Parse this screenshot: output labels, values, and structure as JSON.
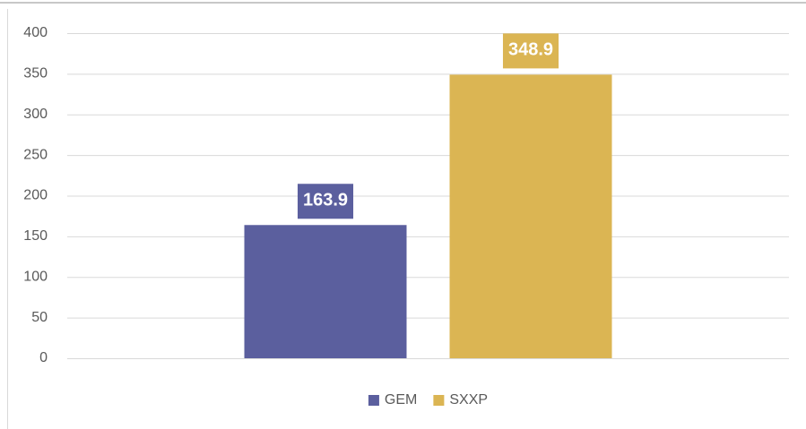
{
  "chart_data": {
    "type": "bar",
    "categories": [
      null
    ],
    "series": [
      {
        "name": "GEM",
        "color": "#5b5f9e",
        "values": [
          163.9
        ]
      },
      {
        "name": "SXXP",
        "color": "#dbb553",
        "values": [
          348.9
        ]
      }
    ],
    "ylim": [
      0,
      400
    ],
    "yticks": [
      0,
      50,
      100,
      150,
      200,
      250,
      300,
      350,
      400
    ],
    "grid": true,
    "legend": "bottom",
    "data_labels": true
  }
}
